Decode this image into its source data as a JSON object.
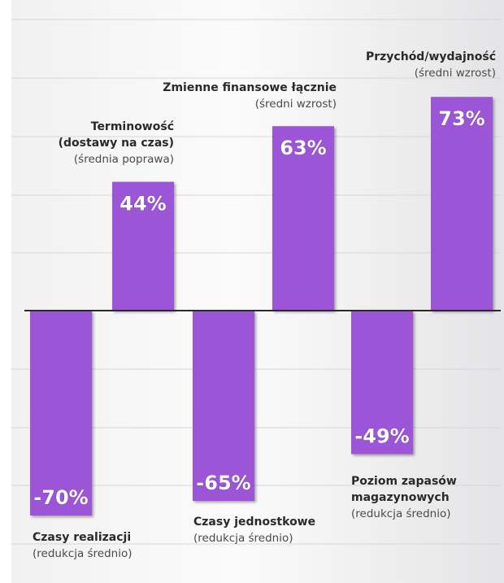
{
  "chart_data": {
    "type": "bar",
    "grid": true,
    "legend": "none",
    "bar_color": "#9b55d6",
    "value_label_color": "#ffffff",
    "ylim": [
      -100,
      100
    ],
    "values": [
      -70,
      44,
      -65,
      63,
      -49,
      73
    ],
    "value_labels": [
      "-70%",
      "44%",
      "-65%",
      "63%",
      "-49%",
      "73%"
    ],
    "labels": [
      {
        "title": "Czasy realizacji",
        "subtitle": "(redukcja średnio)"
      },
      {
        "title": "Terminowość\n(dostawy na czas)",
        "subtitle": "(średnia poprawa)"
      },
      {
        "title": "Czasy jednostkowe",
        "subtitle": "(redukcja średnio)"
      },
      {
        "title": "Zmienne finansowe łącznie",
        "subtitle": "(średni wzrost)"
      },
      {
        "title": "Poziom zapasów\nmagazynowych",
        "subtitle": "(redukcja średnio)"
      },
      {
        "title": "Przychód/wydajność",
        "subtitle": "(średni wzrost)"
      }
    ]
  }
}
